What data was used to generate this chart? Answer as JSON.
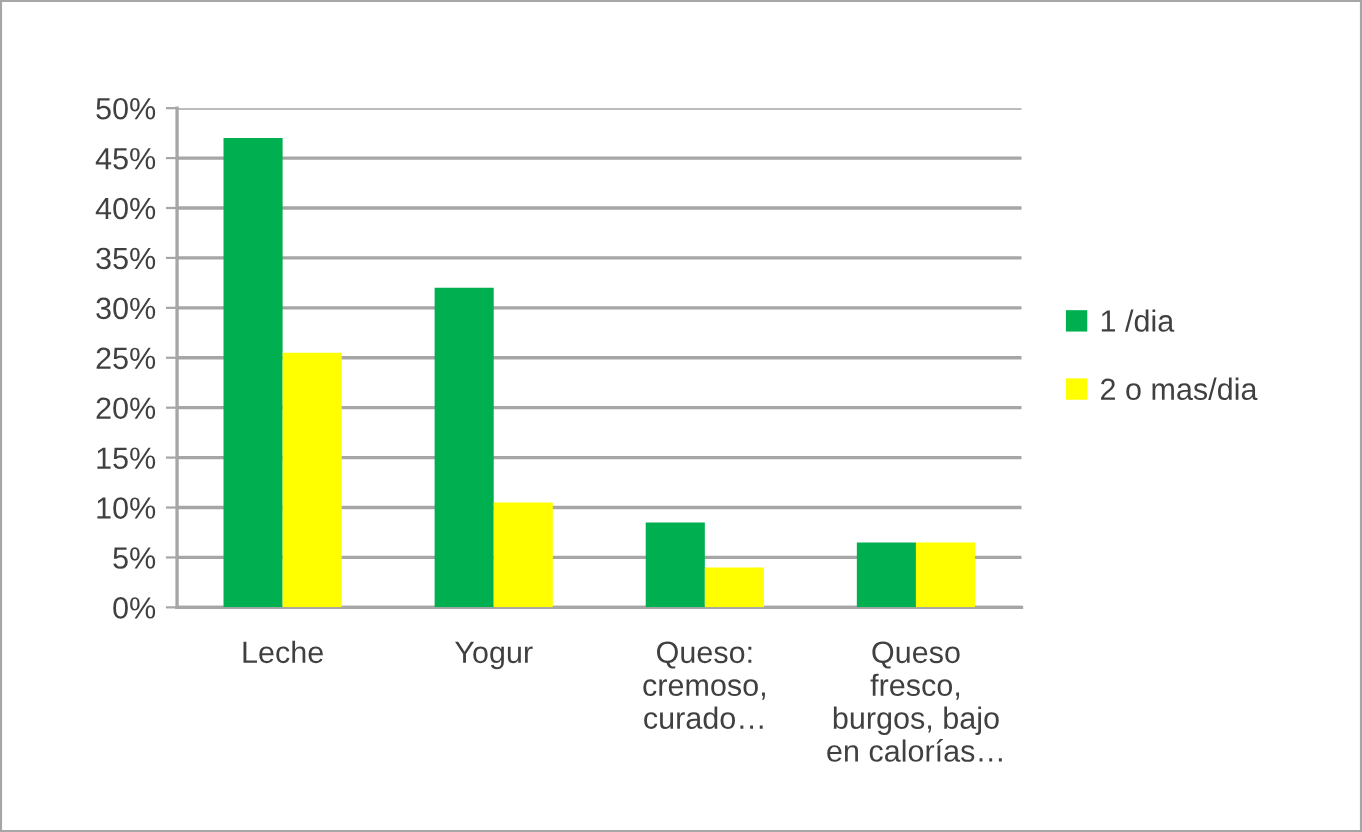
{
  "chart_data": {
    "type": "bar",
    "categories": [
      "Leche",
      "Yogur",
      "Queso:\ncremoso,\ncurado…",
      "Queso\nfresco,\nburgos, bajo\nen calorías…"
    ],
    "series": [
      {
        "name": "1 /dia",
        "color": "#00b050",
        "values": [
          47,
          32,
          8.5,
          6.5
        ]
      },
      {
        "name": "2 o mas/dia",
        "color": "#ffff00",
        "values": [
          25.5,
          10.5,
          4,
          6.5
        ]
      }
    ],
    "ylim": [
      0,
      50
    ],
    "yticks": [
      {
        "value": 0,
        "label": "0%"
      },
      {
        "value": 5,
        "label": "5%"
      },
      {
        "value": 10,
        "label": "10%"
      },
      {
        "value": 15,
        "label": "15%"
      },
      {
        "value": 20,
        "label": "20%"
      },
      {
        "value": 25,
        "label": "25%"
      },
      {
        "value": 30,
        "label": "30%"
      },
      {
        "value": 35,
        "label": "35%"
      },
      {
        "value": 40,
        "label": "40%"
      },
      {
        "value": 45,
        "label": "45%"
      },
      {
        "value": 50,
        "label": "50%"
      }
    ],
    "grid": "y",
    "legend": "right"
  }
}
